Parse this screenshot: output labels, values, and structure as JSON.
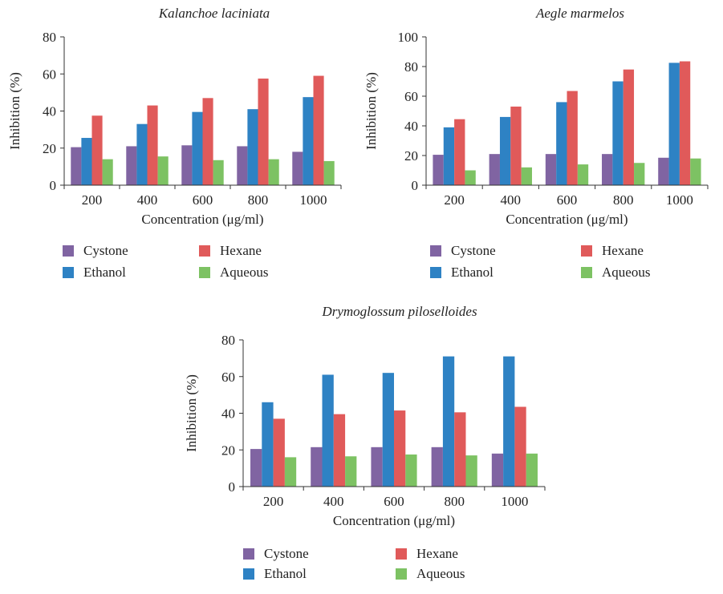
{
  "chart_data": [
    {
      "type": "bar",
      "title": "Kalanchoe laciniata",
      "xlabel": "Concentration (μg/ml)",
      "ylabel": "Inhibition (%)",
      "categories": [
        "200",
        "400",
        "600",
        "800",
        "1000"
      ],
      "ylim": [
        0,
        80
      ],
      "yticks": [
        0,
        20,
        40,
        60,
        80
      ],
      "grid": false,
      "legend_position": "bottom",
      "series": [
        {
          "name": "Cystone",
          "color": "#8064a2",
          "values": [
            20.5,
            21,
            21.5,
            21,
            18
          ]
        },
        {
          "name": "Ethanol",
          "color": "#2e82c4",
          "values": [
            25.5,
            33,
            39.5,
            41,
            47.5
          ]
        },
        {
          "name": "Hexane",
          "color": "#e05a5a",
          "values": [
            37.5,
            43,
            47,
            57.5,
            59
          ]
        },
        {
          "name": "Aqueous",
          "color": "#7dc263",
          "values": [
            14,
            15.5,
            13.5,
            14,
            13
          ]
        }
      ]
    },
    {
      "type": "bar",
      "title": "Aegle marmelos",
      "xlabel": "Concentration (μg/ml)",
      "ylabel": "Inhibition (%)",
      "categories": [
        "200",
        "400",
        "600",
        "800",
        "1000"
      ],
      "ylim": [
        0,
        100
      ],
      "yticks": [
        0,
        20,
        40,
        60,
        80,
        100
      ],
      "grid": false,
      "legend_position": "bottom",
      "series": [
        {
          "name": "Cystone",
          "color": "#8064a2",
          "values": [
            20.5,
            21,
            21,
            21,
            18.5
          ]
        },
        {
          "name": "Ethanol",
          "color": "#2e82c4",
          "values": [
            39,
            46,
            56,
            70,
            82.5
          ]
        },
        {
          "name": "Hexane",
          "color": "#e05a5a",
          "values": [
            44.5,
            53,
            63.5,
            78,
            83.5
          ]
        },
        {
          "name": "Aqueous",
          "color": "#7dc263",
          "values": [
            10,
            12,
            14,
            15,
            18
          ]
        }
      ]
    },
    {
      "type": "bar",
      "title": "Drymoglossum piloselloides",
      "xlabel": "Concentration (μg/ml)",
      "ylabel": "Inhibition (%)",
      "categories": [
        "200",
        "400",
        "600",
        "800",
        "1000"
      ],
      "ylim": [
        0,
        80
      ],
      "yticks": [
        0,
        20,
        40,
        60,
        80
      ],
      "grid": false,
      "legend_position": "bottom",
      "series": [
        {
          "name": "Cystone",
          "color": "#8064a2",
          "values": [
            20.5,
            21.5,
            21.5,
            21.5,
            18
          ]
        },
        {
          "name": "Ethanol",
          "color": "#2e82c4",
          "values": [
            46,
            61,
            62,
            71,
            71
          ]
        },
        {
          "name": "Hexane",
          "color": "#e05a5a",
          "values": [
            37,
            39.5,
            41.5,
            40.5,
            43.5
          ]
        },
        {
          "name": "Aqueous",
          "color": "#7dc263",
          "values": [
            16,
            16.5,
            17.5,
            17,
            18
          ]
        }
      ]
    }
  ]
}
